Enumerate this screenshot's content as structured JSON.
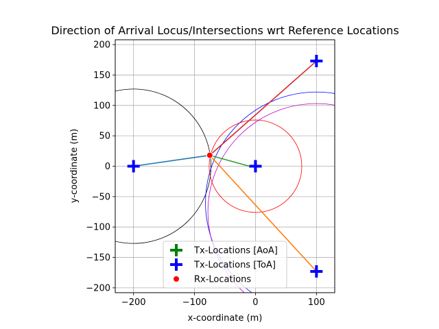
{
  "chart_data": {
    "type": "scatter",
    "title": "Direction of Arrival Locus/Intersections wrt Reference Locations",
    "xlabel": "x-coordinate (m)",
    "ylabel": "y-coordinate (m)",
    "xlim": [
      -230,
      130
    ],
    "ylim": [
      -208,
      208
    ],
    "xticks": [
      -200,
      -100,
      0,
      100
    ],
    "yticks": [
      -200,
      -150,
      -100,
      -50,
      0,
      50,
      100,
      150,
      200
    ],
    "xtick_labels": [
      "−200",
      "−100",
      "0",
      "100"
    ],
    "ytick_labels": [
      "−200",
      "−150",
      "−100",
      "−50",
      "0",
      "50",
      "100",
      "150",
      "200"
    ],
    "grid": true,
    "legend_position": "lower center",
    "circles": [
      {
        "cx": -200,
        "cy": 0,
        "r": 127,
        "color": "#000000"
      },
      {
        "cx": 100,
        "cy": -60,
        "r": 182,
        "color": "#0000ff"
      },
      {
        "cx": 0,
        "cy": 0,
        "r": 76,
        "color": "#ff0000"
      },
      {
        "cx": 100,
        "cy": -75,
        "r": 178,
        "color": "#bf00bf"
      }
    ],
    "lines": [
      {
        "from": [
          -75,
          18
        ],
        "to": [
          -200,
          0
        ],
        "color": "#1f77b4"
      },
      {
        "from": [
          -75,
          18
        ],
        "to": [
          100,
          -173
        ],
        "color": "#ff7f0e"
      },
      {
        "from": [
          -75,
          18
        ],
        "to": [
          -10,
          0
        ],
        "color": "#2ca02c"
      },
      {
        "from": [
          -75,
          18
        ],
        "to": [
          100,
          173
        ],
        "color": "#d62728"
      }
    ],
    "series": [
      {
        "name": "Tx-Locations [AoA]",
        "marker": "plus",
        "color": "#008000",
        "points": [
          [
            0,
            0
          ]
        ]
      },
      {
        "name": "Tx-Locations [ToA]",
        "marker": "plus",
        "color": "#0000ff",
        "points": [
          [
            -200,
            0
          ],
          [
            0,
            0
          ],
          [
            100,
            173
          ],
          [
            100,
            -173
          ]
        ]
      },
      {
        "name": "Rx-Locations",
        "marker": "circle",
        "color": "#ff0000",
        "points": [
          [
            -75,
            18
          ]
        ]
      }
    ]
  }
}
